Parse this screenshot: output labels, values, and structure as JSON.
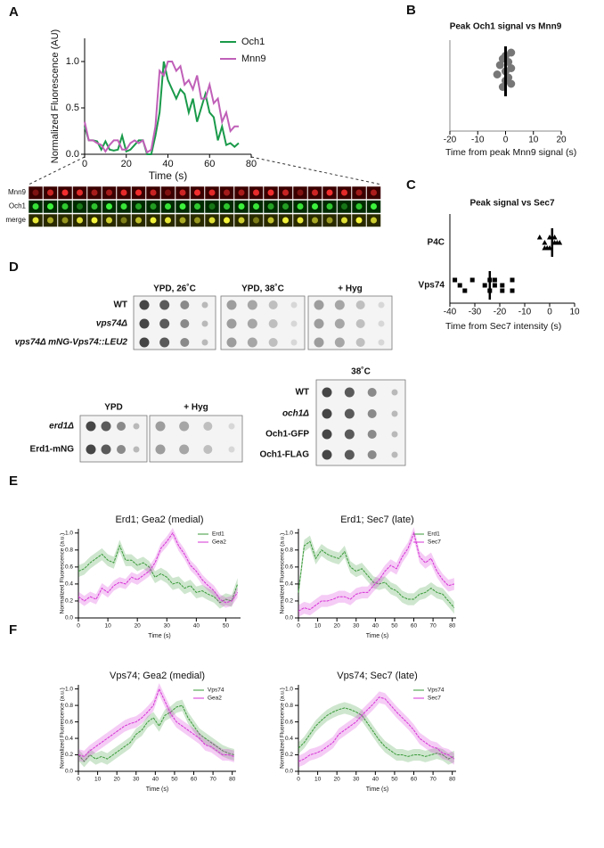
{
  "chart_data": [
    {
      "type": "line",
      "panel": "A",
      "xlabel": "Time (s)",
      "ylabel": "Normalized Fluorescence (AU)",
      "x": [
        0,
        2,
        4,
        6,
        8,
        10,
        12,
        14,
        16,
        18,
        20,
        22,
        24,
        26,
        28,
        30,
        32,
        34,
        36,
        38,
        40,
        42,
        44,
        46,
        48,
        50,
        52,
        54,
        56,
        58,
        60,
        62,
        64,
        66,
        68,
        70,
        72,
        74
      ],
      "series": [
        {
          "name": "Och1",
          "color": "#1a9a4a",
          "values": [
            0.3,
            0.15,
            0.15,
            0.14,
            0.05,
            0.14,
            0.05,
            0.04,
            0.05,
            0.2,
            0.03,
            0.05,
            0.1,
            0.15,
            0.15,
            0.0,
            0.0,
            0.2,
            0.45,
            1.0,
            0.8,
            0.7,
            0.6,
            0.7,
            0.65,
            0.45,
            0.6,
            0.35,
            0.5,
            0.65,
            0.45,
            0.4,
            0.15,
            0.3,
            0.1,
            0.12,
            0.08,
            0.12
          ]
        },
        {
          "name": "Mnn9",
          "color": "#c060b8",
          "values": [
            0.35,
            0.15,
            0.15,
            0.12,
            0.1,
            0.03,
            0.1,
            0.15,
            0.15,
            0.05,
            0.05,
            0.12,
            0.15,
            0.12,
            0.15,
            0.02,
            0.05,
            0.3,
            0.9,
            0.85,
            1.0,
            1.0,
            0.9,
            0.95,
            0.75,
            0.8,
            0.7,
            0.85,
            0.6,
            0.6,
            0.75,
            0.55,
            0.6,
            0.35,
            0.45,
            0.25,
            0.3,
            0.3
          ]
        }
      ],
      "xlim": [
        0,
        80
      ],
      "xticks": [
        0,
        20,
        40,
        60,
        80
      ],
      "ylim": [
        0,
        1.25
      ],
      "yticks": [
        {
          "value": 0,
          "label": "0.0"
        },
        0.5,
        {
          "value": 1,
          "label": "1.0"
        }
      ],
      "legend": "upper right",
      "kymograph_rows": [
        "Mnn9",
        "Och1",
        "merge"
      ]
    },
    {
      "type": "dotplot",
      "panel": "B",
      "title": "Peak Och1 signal vs Mnn9",
      "xlabel": "Time from peak Mnn9 signal (s)",
      "values": [
        2,
        0,
        -1,
        1,
        -2,
        2,
        0,
        -3,
        1,
        0,
        2,
        -1
      ],
      "mean": 0,
      "color": "#777777",
      "xlim": [
        -20,
        20
      ],
      "xticks": [
        -20,
        -10,
        0,
        10,
        20
      ]
    },
    {
      "type": "dotplot",
      "panel": "C",
      "title": "Peak signal vs Sec7",
      "xlabel": "Time from Sec7 intensity  (s)",
      "groups": [
        {
          "category": "P4C",
          "marker": "triangle",
          "values": [
            -4,
            -2,
            0,
            2,
            4,
            -2,
            0,
            2,
            -1,
            1,
            3
          ],
          "mean": 1
        },
        {
          "category": "Vps74",
          "marker": "square",
          "values": [
            -38,
            -36,
            -34,
            -31,
            -26,
            -24,
            -22,
            -19,
            -15,
            -24,
            -22,
            -19,
            -15
          ],
          "mean": -24
        }
      ],
      "xlim": [
        -40,
        10
      ],
      "xticks": [
        -40,
        -30,
        -20,
        -10,
        0,
        10
      ]
    },
    {
      "type": "line",
      "panel": "E",
      "title": "Erd1; Gea2 (medial)",
      "xlabel": "Time (s)",
      "ylabel": "Normalized Fluorescence (a.u.)",
      "x": [
        0,
        2,
        4,
        6,
        8,
        10,
        12,
        14,
        16,
        18,
        20,
        22,
        24,
        26,
        28,
        30,
        32,
        34,
        36,
        38,
        40,
        42,
        44,
        46,
        48,
        50,
        52,
        54
      ],
      "series": [
        {
          "name": "Erd1",
          "color": "#3a9a3a",
          "error": 0.07,
          "values": [
            0.55,
            0.58,
            0.65,
            0.7,
            0.75,
            0.68,
            0.65,
            0.85,
            0.68,
            0.68,
            0.62,
            0.65,
            0.6,
            0.48,
            0.52,
            0.48,
            0.4,
            0.42,
            0.35,
            0.38,
            0.3,
            0.32,
            0.28,
            0.25,
            0.18,
            0.22,
            0.2,
            0.4
          ]
        },
        {
          "name": "Gea2",
          "color": "#d633d6",
          "error": 0.06,
          "values": [
            0.25,
            0.2,
            0.25,
            0.22,
            0.35,
            0.3,
            0.38,
            0.42,
            0.4,
            0.48,
            0.45,
            0.5,
            0.55,
            0.65,
            0.82,
            0.9,
            1.0,
            0.85,
            0.75,
            0.62,
            0.55,
            0.45,
            0.38,
            0.32,
            0.22,
            0.18,
            0.2,
            0.3
          ]
        }
      ],
      "xlim": [
        0,
        55
      ],
      "xticks": [
        0,
        10,
        20,
        30,
        40,
        50
      ],
      "ylim": [
        0,
        1.05
      ],
      "yticks": [
        {
          "value": 0,
          "label": "0.0"
        },
        0.2,
        0.4,
        0.6,
        0.8,
        {
          "value": 1,
          "label": "1.0"
        }
      ],
      "legend": "upper right"
    },
    {
      "type": "line",
      "title": "Erd1; Sec7 (late)",
      "xlabel": "Time (s)",
      "ylabel": "Normalized Fluorescence (a.u.)",
      "x": [
        0,
        3,
        6,
        9,
        12,
        15,
        18,
        21,
        24,
        27,
        30,
        33,
        36,
        39,
        42,
        45,
        48,
        51,
        54,
        57,
        60,
        63,
        66,
        69,
        72,
        75,
        78,
        81
      ],
      "series": [
        {
          "name": "Erd1",
          "color": "#3a9a3a",
          "error": 0.07,
          "values": [
            0.3,
            0.85,
            0.9,
            0.7,
            0.8,
            0.75,
            0.72,
            0.7,
            0.78,
            0.6,
            0.55,
            0.58,
            0.5,
            0.42,
            0.4,
            0.42,
            0.35,
            0.32,
            0.25,
            0.22,
            0.22,
            0.28,
            0.3,
            0.35,
            0.3,
            0.28,
            0.2,
            0.12
          ]
        },
        {
          "name": "Sec7",
          "color": "#d633d6",
          "error": 0.07,
          "values": [
            0.08,
            0.12,
            0.1,
            0.15,
            0.2,
            0.2,
            0.22,
            0.25,
            0.25,
            0.22,
            0.28,
            0.3,
            0.3,
            0.38,
            0.45,
            0.55,
            0.62,
            0.58,
            0.72,
            0.82,
            1.0,
            0.72,
            0.65,
            0.7,
            0.55,
            0.45,
            0.38,
            0.4
          ]
        }
      ],
      "xlim": [
        0,
        82
      ],
      "xticks": [
        0,
        10,
        20,
        30,
        40,
        50,
        60,
        70,
        80
      ],
      "ylim": [
        0,
        1.05
      ],
      "yticks": [
        {
          "value": 0,
          "label": "0.0"
        },
        0.2,
        0.4,
        0.6,
        0.8,
        {
          "value": 1,
          "label": "1.0"
        }
      ],
      "legend": "upper right"
    },
    {
      "type": "line",
      "panel": "F",
      "title": "Vps74; Gea2 (medial)",
      "xlabel": "Time (s)",
      "ylabel": "Normalized Fluorescence (a.u.)",
      "x": [
        0,
        3,
        6,
        9,
        12,
        15,
        18,
        21,
        24,
        27,
        30,
        33,
        36,
        39,
        42,
        45,
        48,
        51,
        54,
        57,
        60,
        63,
        66,
        69,
        72,
        75,
        78,
        81
      ],
      "series": [
        {
          "name": "Vps74",
          "color": "#3a9a3a",
          "error": 0.07,
          "values": [
            0.2,
            0.12,
            0.2,
            0.15,
            0.18,
            0.15,
            0.2,
            0.25,
            0.3,
            0.35,
            0.45,
            0.5,
            0.6,
            0.65,
            0.55,
            0.68,
            0.72,
            0.78,
            0.8,
            0.65,
            0.55,
            0.45,
            0.4,
            0.35,
            0.3,
            0.25,
            0.22,
            0.2
          ]
        },
        {
          "name": "Gea2",
          "color": "#d633d6",
          "error": 0.07,
          "values": [
            0.2,
            0.18,
            0.25,
            0.3,
            0.35,
            0.4,
            0.45,
            0.5,
            0.55,
            0.58,
            0.6,
            0.65,
            0.72,
            0.8,
            1.0,
            0.85,
            0.7,
            0.6,
            0.55,
            0.5,
            0.45,
            0.4,
            0.32,
            0.3,
            0.25,
            0.2,
            0.2,
            0.18
          ]
        }
      ],
      "xlim": [
        0,
        82
      ],
      "xticks": [
        0,
        10,
        20,
        30,
        40,
        50,
        60,
        70,
        80
      ],
      "ylim": [
        0,
        1.05
      ],
      "yticks": [
        {
          "value": 0,
          "label": "0.0"
        },
        0.2,
        0.4,
        0.6,
        0.8,
        {
          "value": 1,
          "label": "1.0"
        }
      ],
      "legend": "upper right"
    },
    {
      "type": "line",
      "title": "Vps74; Sec7 (late)",
      "xlabel": "Time (s)",
      "ylabel": "Normalized Fluorescence (a.u.)",
      "x": [
        0,
        3,
        6,
        9,
        12,
        15,
        18,
        21,
        24,
        27,
        30,
        33,
        36,
        39,
        42,
        45,
        48,
        51,
        54,
        57,
        60,
        63,
        66,
        69,
        72,
        75,
        78,
        81
      ],
      "series": [
        {
          "name": "Vps74",
          "color": "#3a9a3a",
          "error": 0.07,
          "values": [
            0.28,
            0.35,
            0.45,
            0.55,
            0.62,
            0.68,
            0.72,
            0.75,
            0.77,
            0.75,
            0.72,
            0.68,
            0.58,
            0.48,
            0.38,
            0.3,
            0.25,
            0.2,
            0.2,
            0.18,
            0.2,
            0.2,
            0.18,
            0.2,
            0.22,
            0.2,
            0.15,
            0.18
          ]
        },
        {
          "name": "Sec7",
          "color": "#d633d6",
          "error": 0.07,
          "values": [
            0.12,
            0.15,
            0.2,
            0.22,
            0.25,
            0.3,
            0.35,
            0.45,
            0.5,
            0.55,
            0.6,
            0.68,
            0.75,
            0.82,
            0.9,
            0.88,
            0.8,
            0.72,
            0.65,
            0.58,
            0.5,
            0.4,
            0.35,
            0.3,
            0.28,
            0.22,
            0.2,
            0.15
          ]
        }
      ],
      "xlim": [
        0,
        82
      ],
      "xticks": [
        0,
        10,
        20,
        30,
        40,
        50,
        60,
        70,
        80
      ],
      "ylim": [
        0,
        1.05
      ],
      "yticks": [
        {
          "value": 0,
          "label": "0.0"
        },
        0.2,
        0.4,
        0.6,
        0.8,
        {
          "value": 1,
          "label": "1.0"
        }
      ],
      "legend": "upper right"
    }
  ],
  "spot_assays": {
    "panel": "D",
    "groups": [
      {
        "headers": [
          "YPD, 26˚C",
          "YPD, 38˚C",
          "+ Hyg"
        ],
        "rows": [
          "WT",
          "vps74Δ",
          "vps74Δ mNG-Vps74::LEU2"
        ]
      },
      {
        "headers": [
          "YPD",
          "+ Hyg"
        ],
        "rows": [
          "erd1Δ",
          "Erd1-mNG"
        ]
      },
      {
        "headers": [
          "38˚C"
        ],
        "rows": [
          "WT",
          "och1Δ",
          "Och1-GFP",
          "Och1-FLAG"
        ]
      }
    ]
  }
}
